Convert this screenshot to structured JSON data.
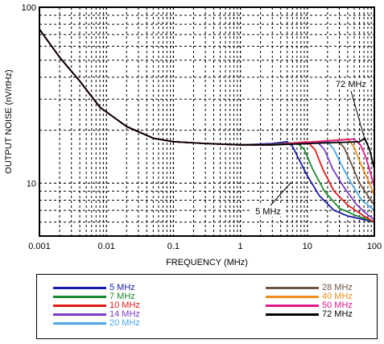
{
  "chart_data": {
    "type": "line",
    "title": "",
    "xlabel": "FREQUENCY (MHz)",
    "ylabel": "OUTPUT NOISE (nV/rtHz)",
    "x_scale": "log",
    "y_scale": "log",
    "xlim": [
      0.001,
      100
    ],
    "ylim": [
      5,
      100
    ],
    "x_ticks": [
      {
        "value": 0.001,
        "label": "0.001"
      },
      {
        "value": 0.01,
        "label": "0.01"
      },
      {
        "value": 0.1,
        "label": "0.1"
      },
      {
        "value": 1,
        "label": "1"
      },
      {
        "value": 10,
        "label": "10"
      },
      {
        "value": 100,
        "label": "100"
      }
    ],
    "y_ticks": [
      {
        "value": 100,
        "label": "100"
      },
      {
        "value": 10,
        "label": "10"
      }
    ],
    "grid": true,
    "legend_position": "below",
    "annotations": [
      {
        "text": "72 MHz",
        "x": 55,
        "y": 30
      },
      {
        "text": "5 MHz",
        "x": 5,
        "y": 7
      }
    ],
    "series": [
      {
        "name": "5 MHz",
        "color": "#1a1aa8",
        "values": [
          [
            0.001,
            75
          ],
          [
            0.002,
            52
          ],
          [
            0.004,
            38
          ],
          [
            0.008,
            27
          ],
          [
            0.02,
            21
          ],
          [
            0.05,
            18
          ],
          [
            0.1,
            17.2
          ],
          [
            0.3,
            16.8
          ],
          [
            1,
            16.5
          ],
          [
            3,
            16.8
          ],
          [
            5,
            17.2
          ],
          [
            6,
            16.2
          ],
          [
            8,
            13
          ],
          [
            10,
            11
          ],
          [
            15,
            8.5
          ],
          [
            25,
            7
          ],
          [
            40,
            6.5
          ],
          [
            70,
            6.2
          ],
          [
            100,
            6
          ]
        ]
      },
      {
        "name": "7 MHz",
        "color": "#1a8a2e",
        "values": [
          [
            0.001,
            75
          ],
          [
            0.002,
            52
          ],
          [
            0.004,
            38
          ],
          [
            0.008,
            27
          ],
          [
            0.02,
            21
          ],
          [
            0.05,
            18
          ],
          [
            0.1,
            17.2
          ],
          [
            0.3,
            16.8
          ],
          [
            1,
            16.5
          ],
          [
            3,
            16.6
          ],
          [
            7,
            17
          ],
          [
            9,
            15.5
          ],
          [
            12,
            12
          ],
          [
            18,
            9
          ],
          [
            30,
            7.2
          ],
          [
            50,
            6.6
          ],
          [
            80,
            6.2
          ],
          [
            100,
            6
          ]
        ]
      },
      {
        "name": "10 MHz",
        "color": "#e01b1b",
        "values": [
          [
            0.001,
            75
          ],
          [
            0.002,
            52
          ],
          [
            0.004,
            38
          ],
          [
            0.008,
            27
          ],
          [
            0.02,
            21
          ],
          [
            0.05,
            18
          ],
          [
            0.1,
            17.2
          ],
          [
            0.3,
            16.8
          ],
          [
            1,
            16.5
          ],
          [
            3,
            16.5
          ],
          [
            10,
            17.2
          ],
          [
            13,
            15.5
          ],
          [
            17,
            12
          ],
          [
            25,
            9
          ],
          [
            40,
            7.5
          ],
          [
            70,
            6.5
          ],
          [
            100,
            6
          ]
        ]
      },
      {
        "name": "14 MHz",
        "color": "#7a3dc8",
        "values": [
          [
            0.001,
            75
          ],
          [
            0.002,
            52
          ],
          [
            0.004,
            38
          ],
          [
            0.008,
            27
          ],
          [
            0.02,
            21
          ],
          [
            0.05,
            18
          ],
          [
            0.1,
            17.2
          ],
          [
            0.3,
            16.8
          ],
          [
            1,
            16.5
          ],
          [
            3,
            16.5
          ],
          [
            14,
            17.2
          ],
          [
            18,
            15.5
          ],
          [
            24,
            12
          ],
          [
            35,
            9.5
          ],
          [
            55,
            7.5
          ],
          [
            80,
            6.6
          ],
          [
            100,
            6.2
          ]
        ]
      },
      {
        "name": "20 MHz",
        "color": "#4aa8e8",
        "values": [
          [
            0.001,
            75
          ],
          [
            0.002,
            52
          ],
          [
            0.004,
            38
          ],
          [
            0.008,
            27
          ],
          [
            0.02,
            21
          ],
          [
            0.05,
            18
          ],
          [
            0.1,
            17.2
          ],
          [
            0.3,
            16.8
          ],
          [
            1,
            16.5
          ],
          [
            3,
            16.5
          ],
          [
            20,
            17.2
          ],
          [
            25,
            15.5
          ],
          [
            33,
            12.5
          ],
          [
            45,
            10
          ],
          [
            65,
            8
          ],
          [
            100,
            7
          ]
        ]
      },
      {
        "name": "28 MHz",
        "color": "#6b5648",
        "values": [
          [
            0.001,
            75
          ],
          [
            0.002,
            52
          ],
          [
            0.004,
            38
          ],
          [
            0.008,
            27
          ],
          [
            0.02,
            21
          ],
          [
            0.05,
            18
          ],
          [
            0.1,
            17.2
          ],
          [
            0.3,
            16.8
          ],
          [
            1,
            16.5
          ],
          [
            3,
            16.5
          ],
          [
            28,
            17.5
          ],
          [
            35,
            16
          ],
          [
            45,
            13
          ],
          [
            60,
            10
          ],
          [
            80,
            8.5
          ],
          [
            100,
            7.5
          ]
        ]
      },
      {
        "name": "40 MHz",
        "color": "#f08c1a",
        "values": [
          [
            0.001,
            75
          ],
          [
            0.002,
            52
          ],
          [
            0.004,
            38
          ],
          [
            0.008,
            27
          ],
          [
            0.02,
            21
          ],
          [
            0.05,
            18
          ],
          [
            0.1,
            17.2
          ],
          [
            0.3,
            16.8
          ],
          [
            1,
            16.5
          ],
          [
            3,
            16.5
          ],
          [
            40,
            17.8
          ],
          [
            50,
            16
          ],
          [
            62,
            13
          ],
          [
            80,
            10.5
          ],
          [
            100,
            8.5
          ]
        ]
      },
      {
        "name": "50 MHz",
        "color": "#e0188a",
        "values": [
          [
            0.001,
            75
          ],
          [
            0.002,
            52
          ],
          [
            0.004,
            38
          ],
          [
            0.008,
            27
          ],
          [
            0.02,
            21
          ],
          [
            0.05,
            18
          ],
          [
            0.1,
            17.2
          ],
          [
            0.3,
            16.8
          ],
          [
            1,
            16.5
          ],
          [
            3,
            16.5
          ],
          [
            50,
            17.8
          ],
          [
            62,
            16.5
          ],
          [
            75,
            14
          ],
          [
            90,
            11
          ],
          [
            100,
            9.5
          ]
        ]
      },
      {
        "name": "72 MHz",
        "color": "#000000",
        "values": [
          [
            0.001,
            75
          ],
          [
            0.002,
            52
          ],
          [
            0.004,
            38
          ],
          [
            0.008,
            27
          ],
          [
            0.02,
            21
          ],
          [
            0.05,
            18
          ],
          [
            0.1,
            17.2
          ],
          [
            0.3,
            16.8
          ],
          [
            1,
            16.5
          ],
          [
            3,
            16.5
          ],
          [
            60,
            17.2
          ],
          [
            72,
            18
          ],
          [
            85,
            15.5
          ],
          [
            100,
            12
          ]
        ]
      }
    ]
  }
}
